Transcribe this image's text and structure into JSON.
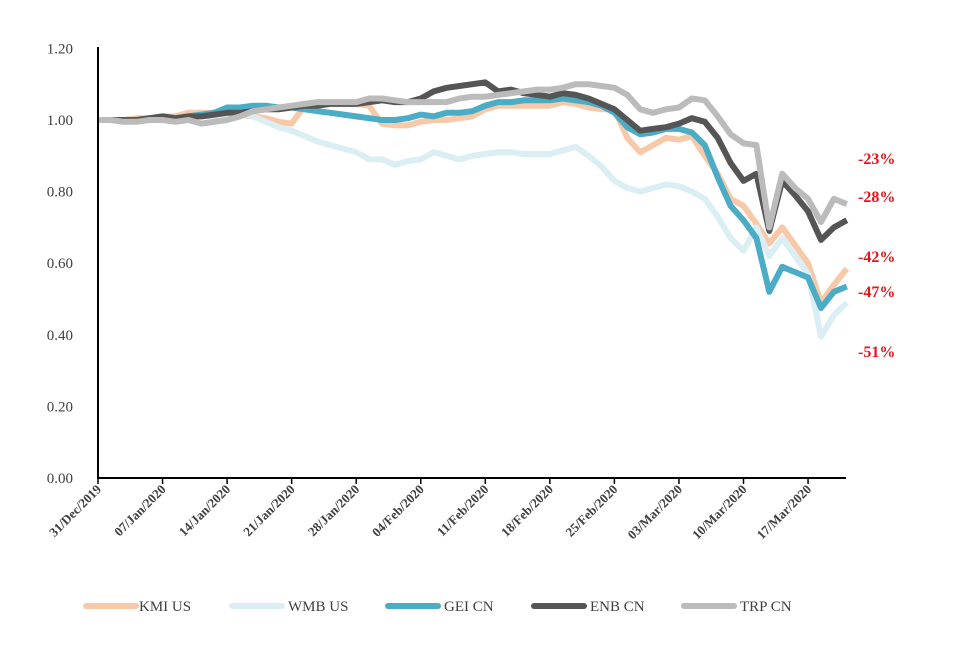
{
  "chart_data": {
    "type": "line",
    "title": "",
    "xlabel": "",
    "ylabel": "",
    "ylim": [
      0,
      1.2
    ],
    "yticks": [
      "0.00",
      "0.20",
      "0.40",
      "0.60",
      "0.80",
      "1.00",
      "1.20"
    ],
    "grid": false,
    "legend_position": "bottom",
    "x_tick_labels": [
      "31/Dec/2019",
      "07/Jan/2020",
      "14/Jan/2020",
      "21/Jan/2020",
      "28/Jan/2020",
      "04/Feb/2020",
      "11/Feb/2020",
      "18/Feb/2020",
      "25/Feb/2020",
      "03/Mar/2020",
      "10/Mar/2020",
      "17/Mar/2020"
    ],
    "x": [
      "31/Dec/2019",
      "01/Jan/2020",
      "02/Jan/2020",
      "03/Jan/2020",
      "06/Jan/2020",
      "07/Jan/2020",
      "08/Jan/2020",
      "09/Jan/2020",
      "10/Jan/2020",
      "13/Jan/2020",
      "14/Jan/2020",
      "15/Jan/2020",
      "16/Jan/2020",
      "17/Jan/2020",
      "20/Jan/2020",
      "21/Jan/2020",
      "22/Jan/2020",
      "23/Jan/2020",
      "24/Jan/2020",
      "27/Jan/2020",
      "28/Jan/2020",
      "29/Jan/2020",
      "30/Jan/2020",
      "31/Jan/2020",
      "03/Feb/2020",
      "04/Feb/2020",
      "05/Feb/2020",
      "06/Feb/2020",
      "07/Feb/2020",
      "10/Feb/2020",
      "11/Feb/2020",
      "12/Feb/2020",
      "13/Feb/2020",
      "14/Feb/2020",
      "17/Feb/2020",
      "18/Feb/2020",
      "19/Feb/2020",
      "20/Feb/2020",
      "21/Feb/2020",
      "24/Feb/2020",
      "25/Feb/2020",
      "26/Feb/2020",
      "27/Feb/2020",
      "28/Feb/2020",
      "02/Mar/2020",
      "03/Mar/2020",
      "04/Mar/2020",
      "05/Mar/2020",
      "06/Mar/2020",
      "09/Mar/2020",
      "10/Mar/2020",
      "11/Mar/2020",
      "12/Mar/2020",
      "13/Mar/2020",
      "16/Mar/2020",
      "17/Mar/2020",
      "18/Mar/2020",
      "19/Mar/2020",
      "20/Mar/2020"
    ],
    "series": [
      {
        "name": "KMI US",
        "color": "#f8c9a8",
        "values": [
          1.0,
          1.0,
          1.0,
          1.005,
          1.005,
          1.01,
          1.01,
          1.02,
          1.02,
          1.02,
          1.02,
          1.015,
          1.01,
          1.005,
          0.995,
          0.99,
          1.04,
          1.045,
          1.045,
          1.045,
          1.045,
          1.04,
          0.99,
          0.985,
          0.985,
          0.995,
          1.0,
          1.0,
          1.005,
          1.01,
          1.03,
          1.04,
          1.04,
          1.04,
          1.04,
          1.04,
          1.05,
          1.045,
          1.035,
          1.03,
          1.03,
          0.95,
          0.91,
          0.93,
          0.95,
          0.945,
          0.955,
          0.9,
          0.85,
          0.78,
          0.76,
          0.71,
          0.655,
          0.7,
          0.65,
          0.6,
          0.49,
          0.54,
          0.585
        ]
      },
      {
        "name": "WMB US",
        "color": "#daeef3",
        "values": [
          1.0,
          1.0,
          0.995,
          1.0,
          1.0,
          1.0,
          1.005,
          1.005,
          1.01,
          1.01,
          1.015,
          1.02,
          1.01,
          0.995,
          0.98,
          0.97,
          0.955,
          0.94,
          0.93,
          0.92,
          0.91,
          0.89,
          0.89,
          0.875,
          0.885,
          0.89,
          0.91,
          0.9,
          0.89,
          0.9,
          0.905,
          0.91,
          0.91,
          0.905,
          0.905,
          0.905,
          0.915,
          0.925,
          0.9,
          0.87,
          0.83,
          0.81,
          0.8,
          0.81,
          0.82,
          0.815,
          0.8,
          0.78,
          0.73,
          0.67,
          0.635,
          0.7,
          0.62,
          0.67,
          0.62,
          0.57,
          0.395,
          0.455,
          0.49
        ]
      },
      {
        "name": "GEI CN",
        "color": "#4bacc6",
        "values": [
          1.0,
          1.0,
          1.0,
          1.0,
          1.005,
          1.005,
          1.0,
          1.01,
          1.015,
          1.02,
          1.035,
          1.035,
          1.04,
          1.04,
          1.035,
          1.035,
          1.03,
          1.025,
          1.02,
          1.015,
          1.01,
          1.005,
          1.0,
          1.0,
          1.005,
          1.015,
          1.01,
          1.02,
          1.02,
          1.025,
          1.04,
          1.05,
          1.05,
          1.055,
          1.055,
          1.055,
          1.06,
          1.055,
          1.05,
          1.04,
          1.02,
          0.98,
          0.96,
          0.965,
          0.975,
          0.975,
          0.965,
          0.93,
          0.84,
          0.76,
          0.72,
          0.67,
          0.52,
          0.59,
          0.575,
          0.56,
          0.475,
          0.52,
          0.535
        ]
      },
      {
        "name": "ENB CN",
        "color": "#555555",
        "values": [
          1.0,
          1.0,
          1.0,
          1.0,
          1.005,
          1.01,
          1.005,
          1.01,
          1.01,
          1.015,
          1.02,
          1.02,
          1.025,
          1.03,
          1.03,
          1.035,
          1.04,
          1.04,
          1.045,
          1.045,
          1.045,
          1.05,
          1.055,
          1.05,
          1.05,
          1.06,
          1.08,
          1.09,
          1.095,
          1.1,
          1.105,
          1.08,
          1.085,
          1.075,
          1.07,
          1.065,
          1.075,
          1.07,
          1.06,
          1.045,
          1.03,
          1.0,
          0.97,
          0.975,
          0.98,
          0.99,
          1.005,
          0.995,
          0.95,
          0.88,
          0.83,
          0.85,
          0.69,
          0.83,
          0.79,
          0.745,
          0.665,
          0.7,
          0.72
        ]
      },
      {
        "name": "TRP CN",
        "color": "#bbbbbb",
        "values": [
          1.0,
          1.0,
          0.995,
          0.995,
          1.0,
          1.0,
          0.995,
          1.0,
          0.99,
          0.995,
          1.0,
          1.01,
          1.025,
          1.03,
          1.035,
          1.04,
          1.045,
          1.05,
          1.05,
          1.05,
          1.05,
          1.06,
          1.06,
          1.055,
          1.05,
          1.05,
          1.05,
          1.05,
          1.06,
          1.065,
          1.065,
          1.07,
          1.075,
          1.08,
          1.085,
          1.085,
          1.09,
          1.1,
          1.1,
          1.095,
          1.09,
          1.07,
          1.03,
          1.02,
          1.03,
          1.035,
          1.06,
          1.055,
          1.01,
          0.96,
          0.935,
          0.93,
          0.7,
          0.85,
          0.81,
          0.78,
          0.715,
          0.78,
          0.765
        ]
      }
    ],
    "annotations": [
      "-23%",
      "-28%",
      "-42%",
      "-47%",
      "-51%"
    ],
    "annotation_color": "#e8141b"
  }
}
